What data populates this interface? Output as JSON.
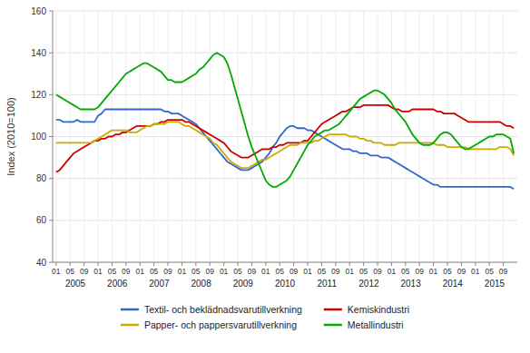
{
  "chart_data": {
    "type": "line",
    "ylabel": "Index (2010=100)",
    "categories": [
      "01",
      null,
      null,
      null,
      "05",
      null,
      null,
      null,
      "09",
      null,
      null,
      null,
      "01",
      null,
      null,
      null,
      "05",
      null,
      null,
      null,
      "09",
      null,
      null,
      null,
      "01",
      null,
      null,
      null,
      "05",
      null,
      null,
      null,
      "09",
      null,
      null,
      null,
      "01",
      null,
      null,
      null,
      "05",
      null,
      null,
      null,
      "09",
      null,
      null,
      null,
      "01",
      null,
      null,
      null,
      "05",
      null,
      null,
      null,
      "09",
      null,
      null,
      null,
      "01",
      null,
      null,
      null,
      "05",
      null,
      null,
      null,
      "09",
      null,
      null,
      null,
      "01",
      null,
      null,
      null,
      "05",
      null,
      null,
      null,
      "09",
      null,
      null,
      null,
      "01",
      null,
      null,
      null,
      "05",
      null,
      null,
      null,
      "09",
      null,
      null,
      null,
      "01",
      null,
      null,
      null,
      "05",
      null,
      null,
      null,
      "09",
      null,
      null,
      null,
      "01",
      null,
      null,
      null,
      "05",
      null,
      null,
      null,
      "09",
      null,
      null,
      null,
      "01",
      null,
      null,
      null,
      "05",
      null,
      null,
      null,
      "09",
      null,
      null,
      null
    ],
    "annotations": [
      "2005",
      "2006",
      "2007",
      "2008",
      "2009",
      "2010",
      "2011",
      "2012",
      "2013",
      "2014",
      "2015"
    ],
    "ylim": [
      40,
      160
    ],
    "yticks": [
      40,
      60,
      80,
      100,
      120,
      140,
      160
    ],
    "grid": true,
    "legend": "bottom",
    "series": [
      {
        "name": "Textil- och beklädnadsvarutillverkning",
        "color": "#3366cc",
        "values": [
          108,
          108,
          107,
          107,
          107,
          107,
          108,
          107,
          107,
          107,
          107,
          107,
          110,
          111,
          113,
          113,
          113,
          113,
          113,
          113,
          113,
          113,
          113,
          113,
          113,
          113,
          113,
          113,
          113,
          113,
          113,
          112,
          112,
          111,
          111,
          111,
          110,
          109,
          108,
          107,
          106,
          104,
          102,
          100,
          98,
          96,
          94,
          92,
          90,
          88,
          87,
          86,
          85,
          84,
          84,
          84,
          85,
          86,
          87,
          88,
          90,
          92,
          95,
          97,
          100,
          102,
          104,
          105,
          105,
          104,
          104,
          104,
          103,
          103,
          102,
          101,
          100,
          99,
          98,
          97,
          96,
          95,
          94,
          94,
          94,
          93,
          93,
          92,
          92,
          92,
          91,
          91,
          91,
          90,
          90,
          90,
          89,
          88,
          87,
          86,
          85,
          84,
          83,
          82,
          81,
          80,
          79,
          78,
          77,
          77,
          76,
          76,
          76,
          76,
          76,
          76,
          76,
          76,
          76,
          76,
          76,
          76,
          76,
          76,
          76,
          76,
          76,
          76,
          76,
          76,
          76,
          75
        ]
      },
      {
        "name": "Kemiskindustri",
        "color": "#cc0000",
        "values": [
          83,
          84,
          86,
          88,
          90,
          92,
          93,
          94,
          95,
          96,
          97,
          98,
          98,
          99,
          99,
          100,
          100,
          101,
          101,
          102,
          102,
          103,
          104,
          105,
          105,
          105,
          105,
          105,
          106,
          106,
          107,
          107,
          108,
          108,
          108,
          108,
          108,
          107,
          107,
          106,
          105,
          104,
          103,
          102,
          101,
          100,
          99,
          98,
          97,
          95,
          93,
          92,
          91,
          90,
          90,
          90,
          91,
          92,
          93,
          94,
          94,
          94,
          95,
          95,
          96,
          96,
          97,
          97,
          97,
          97,
          97,
          98,
          98,
          100,
          102,
          104,
          106,
          107,
          108,
          109,
          110,
          111,
          112,
          112,
          113,
          114,
          114,
          114,
          115,
          115,
          115,
          115,
          115,
          115,
          115,
          115,
          114,
          113,
          113,
          112,
          112,
          112,
          113,
          113,
          113,
          113,
          113,
          113,
          113,
          112,
          112,
          111,
          111,
          111,
          111,
          110,
          109,
          108,
          107,
          107,
          107,
          107,
          107,
          107,
          107,
          107,
          107,
          107,
          106,
          105,
          105,
          104
        ]
      },
      {
        "name": "Papper- och pappersvarutillverkning",
        "color": "#ccaa00",
        "values": [
          97,
          97,
          97,
          97,
          97,
          97,
          97,
          97,
          97,
          97,
          97,
          98,
          99,
          100,
          101,
          102,
          103,
          103,
          103,
          103,
          103,
          102,
          102,
          102,
          103,
          104,
          105,
          105,
          106,
          106,
          106,
          106,
          107,
          107,
          107,
          107,
          106,
          105,
          105,
          104,
          103,
          102,
          101,
          100,
          99,
          97,
          96,
          94,
          92,
          90,
          88,
          87,
          86,
          85,
          85,
          85,
          86,
          87,
          88,
          89,
          89,
          90,
          91,
          92,
          93,
          94,
          95,
          96,
          96,
          96,
          97,
          97,
          97,
          97,
          98,
          98,
          99,
          100,
          101,
          101,
          101,
          101,
          101,
          101,
          100,
          100,
          100,
          99,
          99,
          98,
          98,
          97,
          97,
          97,
          96,
          96,
          96,
          96,
          97,
          97,
          97,
          97,
          97,
          97,
          97,
          97,
          97,
          97,
          97,
          96,
          96,
          96,
          95,
          95,
          95,
          95,
          95,
          95,
          94,
          94,
          94,
          94,
          94,
          94,
          94,
          94,
          94,
          95,
          95,
          95,
          94,
          91
        ]
      },
      {
        "name": "Metallindustri",
        "color": "#00aa00",
        "values": [
          120,
          119,
          118,
          117,
          116,
          115,
          114,
          113,
          113,
          113,
          113,
          113,
          114,
          116,
          118,
          120,
          122,
          124,
          126,
          128,
          130,
          131,
          132,
          133,
          134,
          135,
          135,
          134,
          133,
          132,
          131,
          129,
          127,
          127,
          126,
          126,
          126,
          127,
          128,
          129,
          130,
          132,
          133,
          135,
          137,
          139,
          140,
          139,
          138,
          135,
          130,
          124,
          118,
          112,
          106,
          100,
          95,
          91,
          87,
          83,
          79,
          77,
          76,
          76,
          77,
          78,
          79,
          81,
          84,
          87,
          90,
          93,
          96,
          98,
          100,
          101,
          102,
          103,
          103,
          104,
          105,
          106,
          108,
          110,
          112,
          114,
          116,
          118,
          119,
          120,
          121,
          122,
          122,
          121,
          120,
          118,
          116,
          113,
          111,
          109,
          107,
          104,
          101,
          99,
          97,
          96,
          96,
          96,
          97,
          99,
          101,
          102,
          102,
          101,
          99,
          97,
          95,
          94,
          94,
          95,
          96,
          97,
          98,
          99,
          100,
          100,
          101,
          101,
          101,
          100,
          99,
          92
        ]
      }
    ]
  }
}
